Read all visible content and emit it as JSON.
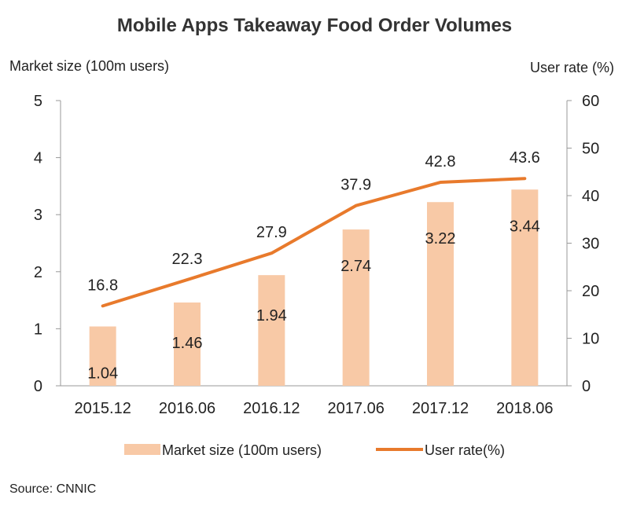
{
  "chart_data": {
    "type": "bar",
    "title": "Mobile Apps  Takeaway Food Order Volumes",
    "categories": [
      "2015.12",
      "2016.06",
      "2016.12",
      "2017.06",
      "2017.12",
      "2018.06"
    ],
    "ylabel": "Market size (100m users)",
    "y2label": "User rate (%)",
    "ylim": [
      0,
      5
    ],
    "y2lim": [
      0,
      60
    ],
    "yticks": [
      "0",
      "1",
      "2",
      "3",
      "4",
      "5"
    ],
    "y2ticks": [
      "0",
      "10",
      "20",
      "30",
      "40",
      "50",
      "60"
    ],
    "grid": false,
    "legend_position": "bottom",
    "series": [
      {
        "name": "Market size (100m users)",
        "type": "bar",
        "axis": "left",
        "values": [
          1.04,
          1.46,
          1.94,
          2.74,
          3.22,
          3.44
        ],
        "labels": [
          "1.04",
          "1.46",
          "1.94",
          "2.74",
          "3.22",
          "3.44"
        ]
      },
      {
        "name": "User rate(%)",
        "type": "line",
        "axis": "right",
        "values": [
          16.8,
          22.3,
          27.9,
          37.9,
          42.8,
          43.6
        ],
        "labels": [
          "16.8",
          "22.3",
          "27.9",
          "37.9",
          "42.8",
          "43.6"
        ]
      }
    ],
    "source": "Source: CNNIC",
    "colors": {
      "bar": "#f8c9a6",
      "line": "#e87a2c",
      "axis": "#999999"
    }
  }
}
